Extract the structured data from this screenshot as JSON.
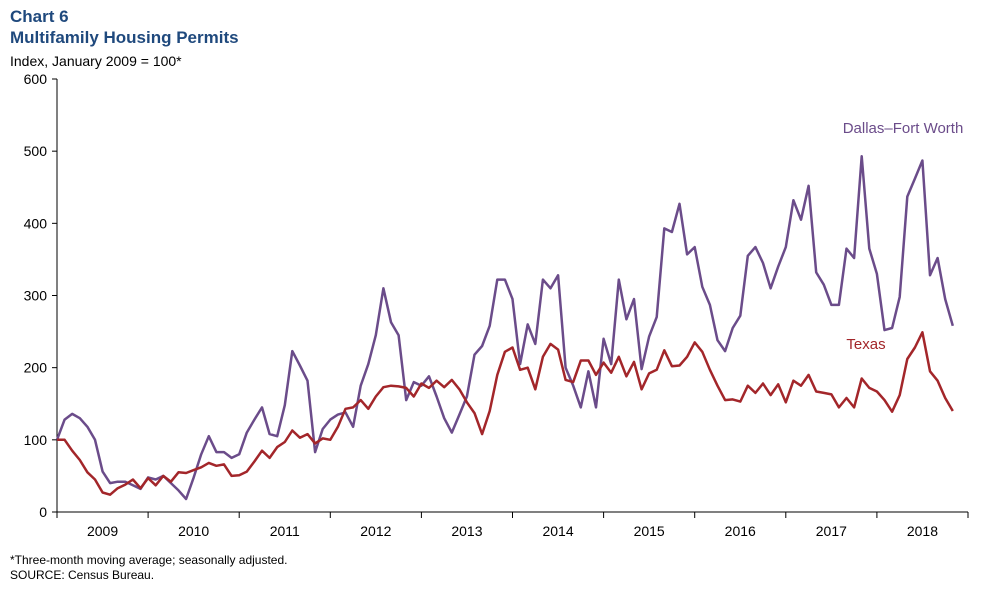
{
  "chart_data": {
    "type": "line",
    "title": "Chart 6",
    "subtitle": "Multifamily Housing Permits",
    "y_label": "Index, January 2009 = 100*",
    "notes": [
      "*Three-month moving average; seasonally adjusted.",
      "SOURCE: Census Bureau."
    ],
    "xlim": [
      2009,
      2019
    ],
    "xticks": [
      2009,
      2010,
      2011,
      2012,
      2013,
      2014,
      2015,
      2016,
      2017,
      2018
    ],
    "ylim": [
      0,
      600
    ],
    "yticks": [
      0,
      100,
      200,
      300,
      400,
      500,
      600
    ],
    "series": [
      {
        "name": "Dallas–Fort Worth",
        "color": "#6b4c8a",
        "values": [
          100,
          128,
          136,
          130,
          118,
          100,
          56,
          40,
          42,
          42,
          37,
          32,
          48,
          45,
          50,
          40,
          30,
          18,
          48,
          80,
          105,
          83,
          83,
          75,
          80,
          110,
          128,
          145,
          108,
          105,
          148,
          223,
          203,
          182,
          83,
          115,
          128,
          135,
          138,
          118,
          175,
          205,
          245,
          310,
          263,
          245,
          155,
          180,
          175,
          188,
          160,
          130,
          110,
          135,
          160,
          218,
          230,
          258,
          322,
          322,
          295,
          205,
          260,
          233,
          322,
          310,
          328,
          200,
          175,
          145,
          195,
          145,
          240,
          205,
          322,
          267,
          295,
          198,
          243,
          270,
          393,
          388,
          427,
          357,
          367,
          312,
          287,
          238,
          223,
          255,
          272,
          355,
          367,
          345,
          310,
          340,
          367,
          432,
          405,
          452,
          332,
          315,
          287,
          287,
          365,
          352,
          493,
          365,
          330,
          252,
          255,
          298,
          437,
          462,
          487,
          328,
          352,
          295,
          258
        ]
      },
      {
        "name": "Texas",
        "color": "#a3262a",
        "values": [
          100,
          100,
          85,
          72,
          55,
          45,
          27,
          24,
          33,
          38,
          45,
          33,
          47,
          37,
          50,
          42,
          55,
          54,
          58,
          62,
          68,
          64,
          66,
          50,
          51,
          56,
          70,
          85,
          75,
          90,
          97,
          113,
          103,
          108,
          95,
          102,
          100,
          118,
          143,
          145,
          155,
          143,
          160,
          173,
          175,
          174,
          172,
          160,
          178,
          172,
          182,
          173,
          183,
          170,
          152,
          137,
          108,
          140,
          190,
          222,
          228,
          197,
          200,
          170,
          215,
          233,
          225,
          183,
          180,
          210,
          210,
          190,
          207,
          193,
          215,
          188,
          208,
          170,
          192,
          197,
          224,
          202,
          203,
          215,
          235,
          222,
          197,
          175,
          155,
          156,
          153,
          175,
          165,
          178,
          162,
          177,
          152,
          182,
          175,
          190,
          167,
          165,
          163,
          145,
          158,
          145,
          185,
          172,
          167,
          155,
          139,
          162,
          212,
          228,
          249,
          195,
          182,
          158,
          140
        ]
      }
    ]
  }
}
